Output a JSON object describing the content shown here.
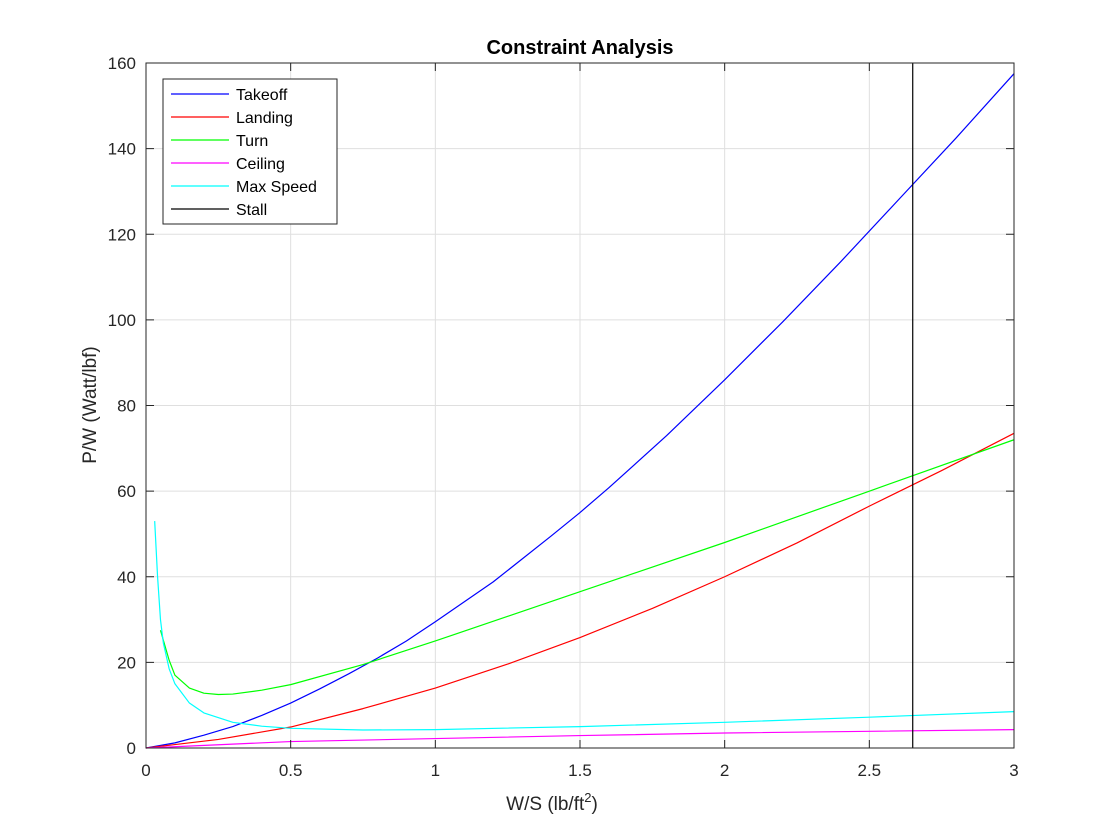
{
  "chart_data": {
    "type": "line",
    "title": "Constraint Analysis",
    "xlabel": "W/S (lb/ft",
    "xlabel_sup": "2",
    "xlabel_suffix": ")",
    "ylabel": "P/W (Watt/lbf)",
    "xlim": [
      0,
      3
    ],
    "ylim": [
      0,
      160
    ],
    "xticks": [
      0,
      0.5,
      1,
      1.5,
      2,
      2.5,
      3
    ],
    "xtick_labels": [
      "0",
      "0.5",
      "1",
      "1.5",
      "2",
      "2.5",
      "3"
    ],
    "yticks": [
      0,
      20,
      40,
      60,
      80,
      100,
      120,
      140,
      160
    ],
    "ytick_labels": [
      "0",
      "20",
      "40",
      "60",
      "80",
      "100",
      "120",
      "140",
      "160"
    ],
    "grid": true,
    "legend_position": "top-left",
    "series": [
      {
        "name": "Takeoff",
        "color": "#0000ff",
        "x": [
          0,
          0.1,
          0.2,
          0.3,
          0.4,
          0.5,
          0.6,
          0.7,
          0.8,
          0.9,
          1.0,
          1.2,
          1.4,
          1.5,
          1.6,
          1.8,
          2.0,
          2.2,
          2.4,
          2.6,
          2.8,
          3.0
        ],
        "y": [
          0,
          1.2,
          3.0,
          5.0,
          7.6,
          10.5,
          13.8,
          17.3,
          21.0,
          25.0,
          29.5,
          38.8,
          49.5,
          55.0,
          60.8,
          73.0,
          86.0,
          99.5,
          113.5,
          128.0,
          142.5,
          157.5
        ]
      },
      {
        "name": "Landing",
        "color": "#ff0000",
        "x": [
          0,
          0.1,
          0.25,
          0.5,
          0.75,
          1.0,
          1.25,
          1.5,
          1.75,
          2.0,
          2.25,
          2.5,
          2.75,
          3.0
        ],
        "y": [
          0,
          0.8,
          2.0,
          4.9,
          9.2,
          14.0,
          19.6,
          25.8,
          32.6,
          40.0,
          47.9,
          56.5,
          64.8,
          73.5
        ]
      },
      {
        "name": "Turn",
        "color": "#00ff00",
        "x": [
          0.05,
          0.08,
          0.1,
          0.15,
          0.2,
          0.25,
          0.3,
          0.4,
          0.5,
          0.75,
          1.0,
          1.5,
          2.0,
          2.5,
          3.0
        ],
        "y": [
          27.5,
          20.5,
          17.0,
          14.0,
          12.8,
          12.5,
          12.6,
          13.5,
          14.8,
          19.5,
          25.0,
          36.5,
          48.0,
          60.0,
          72.0
        ]
      },
      {
        "name": "Ceiling",
        "color": "#ff00ff",
        "x": [
          0,
          0.5,
          1.0,
          1.5,
          2.0,
          2.5,
          3.0
        ],
        "y": [
          0,
          1.5,
          2.2,
          2.9,
          3.5,
          3.9,
          4.3
        ]
      },
      {
        "name": "Max Speed",
        "color": "#00ffff",
        "x": [
          0.03,
          0.04,
          0.05,
          0.06,
          0.08,
          0.1,
          0.15,
          0.2,
          0.3,
          0.4,
          0.5,
          0.75,
          1.0,
          1.5,
          2.0,
          2.5,
          3.0
        ],
        "y": [
          53.0,
          40.0,
          30.0,
          24.5,
          18.5,
          15.0,
          10.5,
          8.2,
          6.0,
          5.1,
          4.6,
          4.2,
          4.3,
          5.0,
          6.0,
          7.2,
          8.5
        ]
      },
      {
        "name": "Stall",
        "color": "#000000",
        "x": [
          2.65,
          2.65
        ],
        "y": [
          0,
          160
        ]
      }
    ]
  }
}
